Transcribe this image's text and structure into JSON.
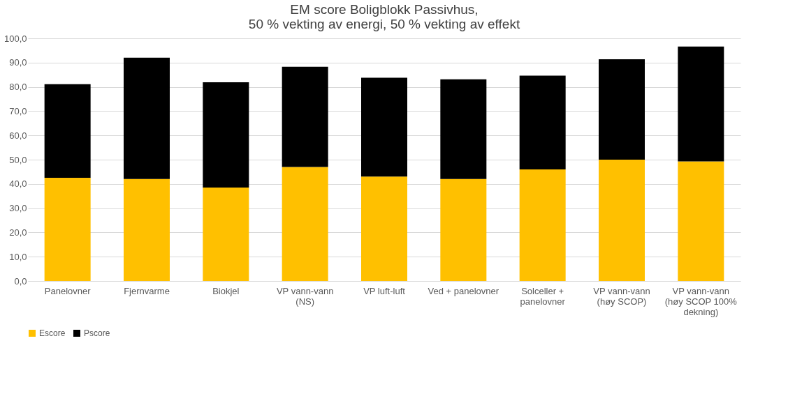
{
  "chart_data": {
    "type": "bar",
    "stacked": true,
    "title": [
      "EM score Boligblokk Passivhus,",
      "50 % vekting av energi, 50 % vekting av effekt"
    ],
    "categories": [
      "Panelovner",
      "Fjernvarme",
      "Biokjel",
      "VP vann-vann (NS)",
      "VP luft-luft",
      "Ved + panelovner",
      "Solceller + panelovner",
      "VP vann-vann (høy SCOP)",
      "VP vann-vann (høy SCOP 100% dekning)"
    ],
    "series": [
      {
        "name": "Escore",
        "color": "#ffc000",
        "values": [
          42.5,
          42.0,
          38.5,
          47.0,
          43.0,
          42.0,
          46.0,
          50.0,
          49.3
        ]
      },
      {
        "name": "Pscore",
        "color": "#000000",
        "values": [
          38.6,
          50.0,
          43.4,
          41.3,
          40.8,
          41.1,
          38.6,
          41.4,
          47.3
        ]
      }
    ],
    "ylim": [
      0,
      100
    ],
    "yticks": [
      {
        "value": 0,
        "label": "0,0"
      },
      {
        "value": 10,
        "label": "10,0"
      },
      {
        "value": 20,
        "label": "20,0"
      },
      {
        "value": 30,
        "label": "30,0"
      },
      {
        "value": 40,
        "label": "40,0"
      },
      {
        "value": 50,
        "label": "50,0"
      },
      {
        "value": 60,
        "label": "60,0"
      },
      {
        "value": 70,
        "label": "70,0"
      },
      {
        "value": 80,
        "label": "80,0"
      },
      {
        "value": 90,
        "label": "90,0"
      },
      {
        "value": 100,
        "label": "100,0"
      }
    ],
    "grid": "y",
    "legend": "bottom"
  }
}
